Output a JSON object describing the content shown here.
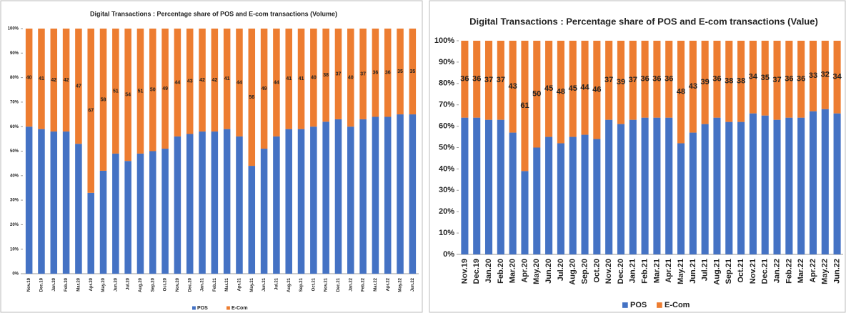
{
  "chart_data": [
    {
      "type": "stacked_bar",
      "title": "Digital Transactions : Percentage share of POS and E-com transactions (Volume)",
      "categories": [
        "Nov.19",
        "Dec.19",
        "Jan.20",
        "Feb.20",
        "Mar.20",
        "Apr.20",
        "May.20",
        "Jun.20",
        "Jul.20",
        "Aug.20",
        "Sep.20",
        "Oct.20",
        "Nov.20",
        "Dec.20",
        "Jan.21",
        "Feb.21",
        "Mar.21",
        "Apr.21",
        "May.21",
        "Jun.21",
        "Jul.21",
        "Aug.21",
        "Sep.21",
        "Oct.21",
        "Nov.21",
        "Dec.21",
        "Jan.22",
        "Feb.22",
        "Mar.22",
        "Apr.22",
        "May.22",
        "Jun.22"
      ],
      "series": [
        {
          "name": "POS",
          "color": "#4472c4",
          "data_labels": false,
          "values": [
            60,
            59,
            58,
            58,
            53,
            33,
            42,
            49,
            46,
            49,
            50,
            51,
            56,
            57,
            58,
            58,
            59,
            56,
            44,
            51,
            56,
            59,
            59,
            60,
            62,
            63,
            60,
            63,
            64,
            64,
            65,
            65
          ]
        },
        {
          "name": "E-Com",
          "color": "#ed7d31",
          "data_labels": true,
          "values": [
            40,
            41,
            42,
            42,
            47,
            67,
            58,
            51,
            54,
            51,
            50,
            49,
            44,
            43,
            42,
            42,
            41,
            44,
            56,
            49,
            44,
            41,
            41,
            40,
            38,
            37,
            40,
            37,
            36,
            36,
            35,
            35
          ]
        }
      ],
      "ylim": [
        0,
        100
      ],
      "yticks": [
        {
          "value": 0,
          "label": "0%"
        },
        {
          "value": 10,
          "label": "10%"
        },
        {
          "value": 20,
          "label": "20%"
        },
        {
          "value": 30,
          "label": "30%"
        },
        {
          "value": 40,
          "label": "40%"
        },
        {
          "value": 50,
          "label": "50%"
        },
        {
          "value": 60,
          "label": "60%"
        },
        {
          "value": 70,
          "label": "70%"
        },
        {
          "value": 80,
          "label": "80%"
        },
        {
          "value": 90,
          "label": "90%"
        },
        {
          "value": 100,
          "label": "100%"
        }
      ],
      "grid": false,
      "legend": "bottom"
    },
    {
      "type": "stacked_bar",
      "title": "Digital Transactions : Percentage share of POS and E-com transactions (Value)",
      "categories": [
        "Nov.19",
        "Dec.19",
        "Jan.20",
        "Feb.20",
        "Mar.20",
        "Apr.20",
        "May.20",
        "Jun.20",
        "Jul.20",
        "Aug.20",
        "Sep.20",
        "Oct.20",
        "Nov.20",
        "Dec.20",
        "Jan.21",
        "Feb.21",
        "Mar.21",
        "Apr.21",
        "May.21",
        "Jun.21",
        "Jul.21",
        "Aug.21",
        "Sep.21",
        "Oct.21",
        "Nov.21",
        "Dec.21",
        "Jan.22",
        "Feb.22",
        "Mar.22",
        "Apr.22",
        "May.22",
        "Jun.22"
      ],
      "series": [
        {
          "name": "POS",
          "color": "#4472c4",
          "data_labels": false,
          "values": [
            64,
            64,
            63,
            63,
            57,
            39,
            50,
            55,
            52,
            55,
            56,
            54,
            63,
            61,
            63,
            64,
            64,
            64,
            52,
            57,
            61,
            64,
            62,
            62,
            66,
            65,
            63,
            64,
            64,
            67,
            68,
            66
          ]
        },
        {
          "name": "E-Com",
          "color": "#ed7d31",
          "data_labels": true,
          "values": [
            36,
            36,
            37,
            37,
            43,
            61,
            50,
            45,
            48,
            45,
            44,
            46,
            37,
            39,
            37,
            36,
            36,
            36,
            48,
            43,
            39,
            36,
            38,
            38,
            34,
            35,
            37,
            36,
            36,
            33,
            32,
            34
          ]
        }
      ],
      "ylim": [
        0,
        100
      ],
      "yticks": [
        {
          "value": 0,
          "label": "0%"
        },
        {
          "value": 10,
          "label": "10%"
        },
        {
          "value": 20,
          "label": "20%"
        },
        {
          "value": 30,
          "label": "30%"
        },
        {
          "value": 40,
          "label": "40%"
        },
        {
          "value": 50,
          "label": "50%"
        },
        {
          "value": 60,
          "label": "60%"
        },
        {
          "value": 70,
          "label": "70%"
        },
        {
          "value": 80,
          "label": "80%"
        },
        {
          "value": 90,
          "label": "90%"
        },
        {
          "value": 100,
          "label": "100%"
        }
      ],
      "grid": false,
      "legend": "bottom"
    }
  ]
}
